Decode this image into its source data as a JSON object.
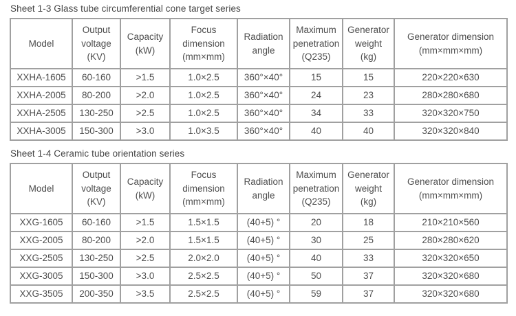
{
  "colors": {
    "background": "#ffffff",
    "text": "#4d4d4d",
    "border": "#a0a0a0"
  },
  "tables": [
    {
      "title": "Sheet 1-3 Glass tube circumferential cone target series",
      "headers": [
        "Model",
        "Output\nvoltage\n(KV)",
        "Capacity\n(kW)",
        "Focus\ndimension\n(mm×mm)",
        "Radiation\nangle",
        "Maximum\npenetration\n(Q235)",
        "Generator\nweight\n(kg)",
        "Generator dimension\n(mm×mm×mm)"
      ],
      "rows": [
        [
          "XXHA-1605",
          "60-160",
          ">1.5",
          "1.0×2.5",
          "360°×40°",
          "15",
          "15",
          "220×220×630"
        ],
        [
          "XXHA-2005",
          "80-200",
          ">2.0",
          "1.0×2.5",
          "360°×40°",
          "24",
          "23",
          "280×280×680"
        ],
        [
          "XXHA-2505",
          "130-250",
          ">2.5",
          "1.0×2.5",
          "360°×40°",
          "34",
          "33",
          "320×320×750"
        ],
        [
          "XXHA-3005",
          "150-300",
          ">3.0",
          "1.0×3.5",
          "360°×40°",
          "40",
          "40",
          "320×320×840"
        ]
      ]
    },
    {
      "title": "Sheet 1-4 Ceramic tube orientation series",
      "headers": [
        "Model",
        "Output\nvoltage\n(KV)",
        "Capacity\n(kW)",
        "Focus\ndimension\n(mm×mm)",
        "Radiation\nangle",
        "Maximum\npenetration\n(Q235)",
        "Generator\nweight\n(kg)",
        "Generator dimension\n(mm×mm×mm)"
      ],
      "rows": [
        [
          "XXG-1605",
          "60-160",
          ">1.5",
          "1.5×1.5",
          "(40+5) °",
          "20",
          "18",
          "210×210×560"
        ],
        [
          "XXG-2005",
          "80-200",
          ">2.0",
          "1.5×1.5",
          "(40+5) °",
          "30",
          "25",
          "280×280×620"
        ],
        [
          "XXG-2505",
          "130-250",
          ">2.5",
          "2.0×2.0",
          "(40+5) °",
          "40",
          "33",
          "320×320×650"
        ],
        [
          "XXG-3005",
          "150-300",
          ">3.0",
          "2.5×2.5",
          "(40+5) °",
          "50",
          "37",
          "320×320×680"
        ],
        [
          "XXG-3505",
          "200-350",
          ">3.5",
          "2.5×2.5",
          "(40+5) °",
          "59",
          "37",
          "320×320×680"
        ]
      ]
    }
  ]
}
